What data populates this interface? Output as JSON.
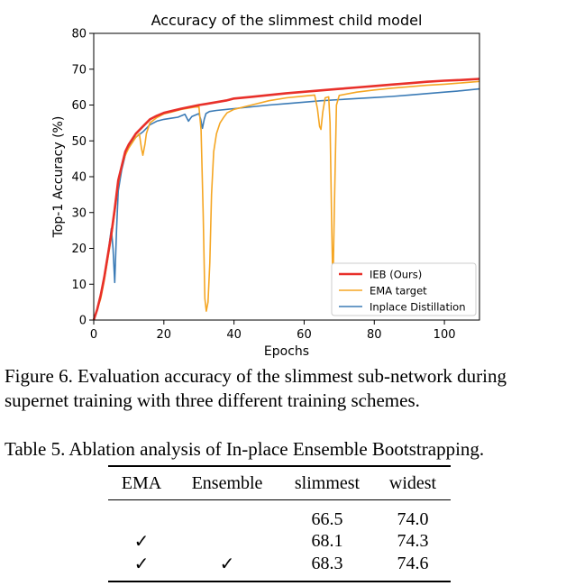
{
  "chart_data": {
    "type": "line",
    "title": "Accuracy of the slimmest child model",
    "xlabel": "Epochs",
    "ylabel": "Top-1 Accuracy (%)",
    "xlim": [
      0,
      110
    ],
    "ylim": [
      0,
      80
    ],
    "xticks": [
      0,
      20,
      40,
      60,
      80,
      100
    ],
    "yticks": [
      0,
      10,
      20,
      30,
      40,
      50,
      60,
      70,
      80
    ],
    "grid": false,
    "legend_position": "lower-right",
    "series": [
      {
        "name": "IEB (Ours)",
        "color": "#e8302a",
        "x": [
          0,
          1,
          2,
          3,
          4,
          5,
          6,
          7,
          8,
          9,
          10,
          12,
          14,
          16,
          18,
          20,
          22,
          25,
          28,
          30,
          32,
          35,
          38,
          40,
          45,
          50,
          55,
          60,
          65,
          70,
          75,
          80,
          85,
          90,
          95,
          100,
          105,
          110
        ],
        "y": [
          0,
          3,
          7,
          12,
          18,
          24,
          31,
          39,
          43,
          47,
          49,
          52,
          54,
          56,
          57,
          57.8,
          58.3,
          59,
          59.6,
          60,
          60.3,
          60.8,
          61.3,
          61.8,
          62.3,
          62.8,
          63.3,
          63.7,
          64.1,
          64.5,
          64.9,
          65.3,
          65.7,
          66.1,
          66.5,
          66.8,
          67,
          67.3
        ]
      },
      {
        "name": "EMA target",
        "color": "#f5a623",
        "x": [
          0,
          1,
          2,
          3,
          4,
          5,
          6,
          7,
          8,
          9,
          10,
          12,
          13,
          13.6,
          14,
          14.6,
          15,
          16,
          18,
          20,
          22,
          25,
          28,
          30,
          30.6,
          31.2,
          31.7,
          32.1,
          32.6,
          33.1,
          33.6,
          34.2,
          35,
          36,
          37,
          38,
          40,
          45,
          50,
          55,
          60,
          63,
          63.8,
          64.4,
          64.8,
          65.3,
          66,
          67,
          67.4,
          67.8,
          68.2,
          68.6,
          69.2,
          70,
          75,
          80,
          85,
          90,
          95,
          100,
          105,
          110
        ],
        "y": [
          0,
          3,
          6,
          11,
          17,
          23,
          30,
          38,
          43,
          46,
          48,
          51,
          52,
          48,
          46,
          49,
          52,
          55,
          56.5,
          57.5,
          58,
          58.8,
          59.3,
          59.6,
          53,
          30,
          6,
          2.5,
          5,
          16,
          35,
          47,
          52,
          55,
          56.5,
          57.8,
          58.8,
          60,
          61.2,
          62,
          62.5,
          62.8,
          59,
          54,
          53.2,
          58,
          62,
          62.3,
          55,
          30,
          8.5,
          30,
          60,
          62.7,
          63.6,
          64.2,
          64.7,
          65.1,
          65.5,
          65.8,
          66.2,
          66.6
        ]
      },
      {
        "name": "Inplace Distillation",
        "color": "#3b7bb6",
        "x": [
          0,
          1,
          2,
          3,
          4,
          5,
          5.5,
          6,
          6.5,
          7,
          8,
          9,
          10,
          12,
          14,
          16,
          18,
          20,
          22,
          24,
          26,
          27,
          28,
          29,
          30,
          30.5,
          31,
          31.5,
          32,
          33,
          35,
          38,
          40,
          45,
          50,
          55,
          60,
          65,
          70,
          75,
          80,
          85,
          90,
          95,
          100,
          105,
          110
        ],
        "y": [
          0,
          3,
          7,
          12,
          18,
          25.5,
          20,
          10.5,
          25,
          36,
          42,
          46,
          48.5,
          51,
          52.5,
          54.5,
          55.5,
          56,
          56.3,
          56.6,
          57.4,
          55.5,
          56.8,
          57.2,
          57.6,
          56,
          53.5,
          56,
          57.6,
          58.2,
          58.5,
          58.8,
          59,
          59.5,
          60,
          60.4,
          60.8,
          61.2,
          61.5,
          61.8,
          62.1,
          62.4,
          62.8,
          63.2,
          63.6,
          64,
          64.5
        ]
      }
    ]
  },
  "figure_caption": "Figure 6. Evaluation accuracy of the slimmest sub-network during supernet training with three different training schemes.",
  "table_caption": "Table 5. Ablation analysis of In-place Ensemble Bootstrapping.",
  "table": {
    "headers": [
      "EMA",
      "Ensemble",
      "slimmest",
      "widest"
    ],
    "rows": [
      [
        "",
        "",
        "66.5",
        "74.0"
      ],
      [
        "✓",
        "",
        "68.1",
        "74.3"
      ],
      [
        "✓",
        "✓",
        "68.3",
        "74.6"
      ]
    ]
  }
}
